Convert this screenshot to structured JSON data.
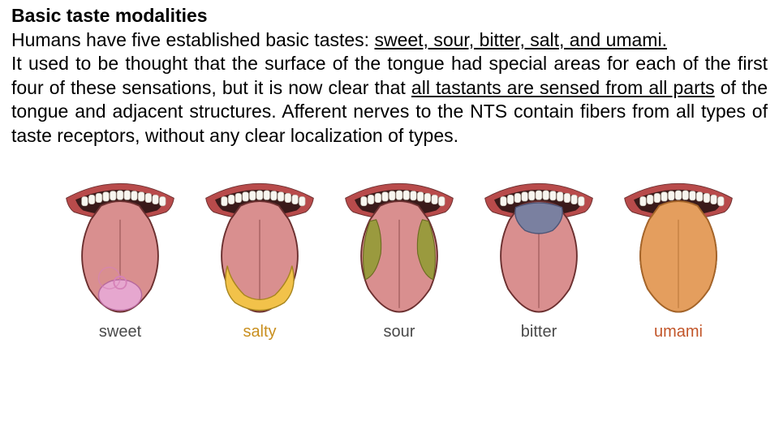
{
  "title": "Basic taste modalities",
  "para1_a": "Humans have five established basic tastes: ",
  "para1_u": "sweet, sour, bitter, salt, and umami.",
  "para2_a": "It used to be thought that the surface of the tongue had special areas for each of the first four of these sensations, but it is now clear that ",
  "para2_u": "all tastants are sensed from all parts",
  "para2_b": " of the tongue and adjacent structures. Afferent nerves to the NTS contain fibers from all types of taste receptors, without any clear localization of types.",
  "colors": {
    "text": "#000000",
    "tongue_fill": "#d98f8f",
    "tongue_stroke": "#6b2f2f",
    "mouth_dark": "#3a1a1a",
    "lips": "#b84b4b",
    "teeth": "#f8f6f0",
    "sweet_zone": "#e6a7cf",
    "salty_zone": "#f2c24a",
    "sour_zone": "#9a9a3e",
    "bitter_zone": "#7a80a0",
    "umami_zone": "#e5a05a",
    "label_default": "#4a4a4a",
    "label_salty": "#c98f1e",
    "label_umami": "#c2562a"
  },
  "tongues": [
    {
      "id": "sweet",
      "label": "sweet",
      "label_color": "#4a4a4a",
      "highlight": "sweet"
    },
    {
      "id": "salty",
      "label": "salty",
      "label_color": "#c98f1e",
      "highlight": "salty"
    },
    {
      "id": "sour",
      "label": "sour",
      "label_color": "#4a4a4a",
      "highlight": "sour"
    },
    {
      "id": "bitter",
      "label": "bitter",
      "label_color": "#4a4a4a",
      "highlight": "bitter"
    },
    {
      "id": "umami",
      "label": "umami",
      "label_color": "#c2562a",
      "highlight": "umami"
    }
  ]
}
